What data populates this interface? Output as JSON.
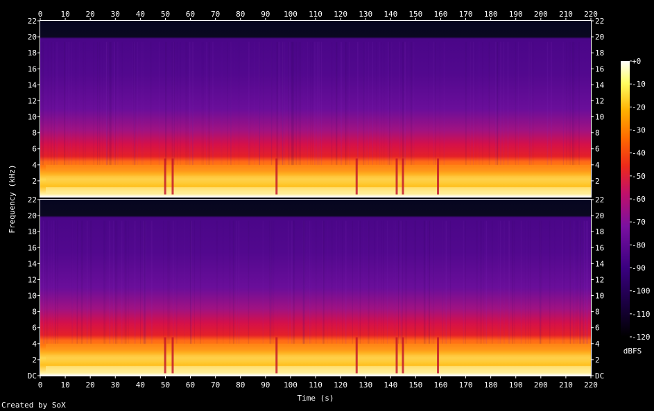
{
  "credit": "Created by SoX",
  "chart_data": {
    "type": "heatmap",
    "subtype": "spectrogram",
    "xlabel": "Time (s)",
    "ylabel": "Frequency (kHz)",
    "xlim": [
      0,
      220
    ],
    "x_ticks": [
      0,
      10,
      20,
      30,
      40,
      50,
      60,
      70,
      80,
      90,
      100,
      110,
      120,
      130,
      140,
      150,
      160,
      170,
      180,
      190,
      200,
      210,
      220
    ],
    "channels": 2,
    "ylim_khz": [
      0,
      22
    ],
    "y_ticks_top": [
      "2",
      "4",
      "6",
      "8",
      "10",
      "12",
      "14",
      "16",
      "18",
      "20",
      "22"
    ],
    "y_ticks_bottom": [
      "DC",
      "2",
      "4",
      "6",
      "8",
      "10",
      "12",
      "14",
      "16",
      "18",
      "20",
      "22"
    ],
    "colorbar": {
      "label": "dBFS",
      "range": [
        -120,
        0
      ],
      "ticks": [
        "+0",
        "-10",
        "-20",
        "-30",
        "-40",
        "-50",
        "-60",
        "-70",
        "-80",
        "-90",
        "-100",
        "-110",
        "-120"
      ]
    },
    "grid": false,
    "colors": [
      "#000000",
      "#2a0060",
      "#4a0090",
      "#7a10a0",
      "#b0107a",
      "#e01a30",
      "#ff6a00",
      "#ffc020",
      "#ffff90",
      "#ffffff"
    ]
  }
}
